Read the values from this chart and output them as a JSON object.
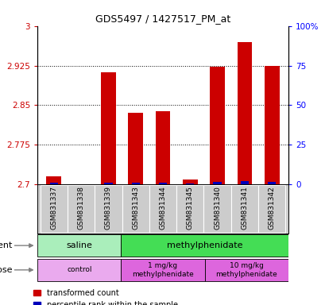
{
  "title": "GDS5497 / 1427517_PM_at",
  "samples": [
    "GSM831337",
    "GSM831338",
    "GSM831339",
    "GSM831343",
    "GSM831344",
    "GSM831345",
    "GSM831340",
    "GSM831341",
    "GSM831342"
  ],
  "red_values": [
    2.715,
    2.701,
    2.912,
    2.835,
    2.838,
    2.71,
    2.923,
    2.97,
    2.924
  ],
  "blue_values": [
    0.003,
    0.001,
    0.004,
    0.004,
    0.004,
    0.002,
    0.005,
    0.006,
    0.005
  ],
  "ymin": 2.7,
  "ymax": 3.0,
  "yticks": [
    2.7,
    2.775,
    2.85,
    2.925,
    3.0
  ],
  "ytick_labels": [
    "2.7",
    "2.775",
    "2.85",
    "2.925",
    "3"
  ],
  "right_yticks": [
    0,
    25,
    50,
    75,
    100
  ],
  "right_ytick_labels": [
    "0",
    "25",
    "50",
    "75",
    "100%"
  ],
  "legend_red": "transformed count",
  "legend_blue": "percentile rank within the sample",
  "bar_width": 0.55,
  "blue_bar_width": 0.3,
  "red_color": "#CC0000",
  "blue_color": "#0000BB",
  "saline_color": "#AAEEBB",
  "methyl_color": "#44DD55",
  "control_color": "#EAAAEE",
  "dose1_color": "#DD66DD",
  "dose2_color": "#DD66DD",
  "agent_data": [
    [
      0,
      3,
      "saline"
    ],
    [
      3,
      9,
      "methylphenidate"
    ]
  ],
  "dose_data": [
    [
      0,
      3,
      "control"
    ],
    [
      3,
      6,
      "1 mg/kg\nmethylphenidate"
    ],
    [
      6,
      9,
      "10 mg/kg\nmethylphenidate"
    ]
  ]
}
